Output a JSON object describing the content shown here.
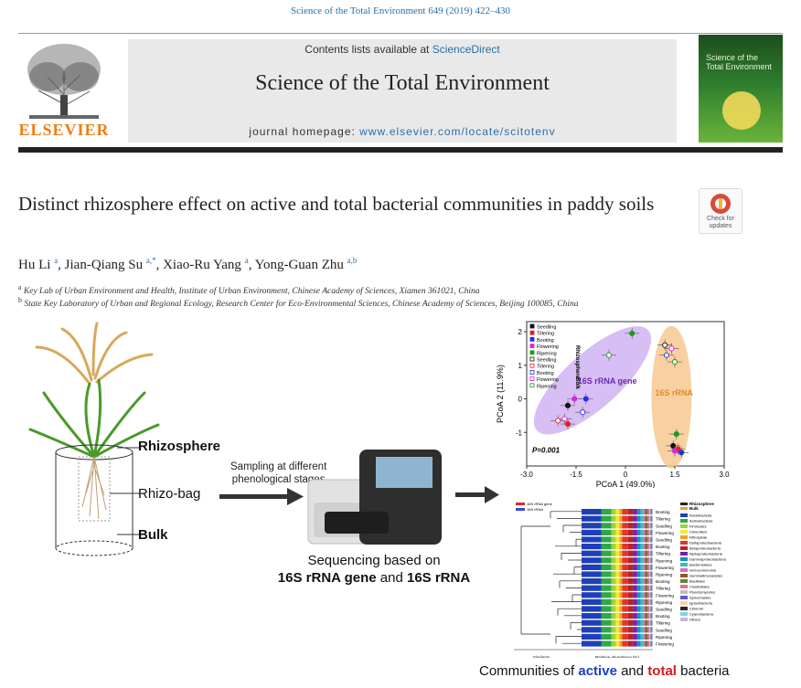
{
  "citation": "Science of the Total Environment 649 (2019) 422–430",
  "header": {
    "contents_prefix": "Contents lists available at ",
    "contents_link": "ScienceDirect",
    "journal_title": "Science of the Total Environment",
    "homepage_prefix": "journal homepage: ",
    "homepage_url": "www.elsevier.com/locate/scitotenv",
    "publisher": "ELSEVIER",
    "cover_title_line1": "Science of the",
    "cover_title_line2": "Total Environment"
  },
  "check_updates": {
    "line1": "Check for",
    "line2": "updates"
  },
  "article": {
    "title": "Distinct rhizosphere effect on active and total bacterial communities in paddy soils",
    "authors": [
      {
        "name": "Hu Li",
        "sup": "a"
      },
      {
        "name": "Jian-Qiang Su",
        "sup": "a,*"
      },
      {
        "name": "Xiao-Ru Yang",
        "sup": "a"
      },
      {
        "name": "Yong-Guan Zhu",
        "sup": "a,b"
      }
    ],
    "affiliations": [
      {
        "sup": "a",
        "text": "Key Lab of Urban Environment and Health, Institute of Urban Environment, Chinese Academy of Sciences, Xiamen 361021, China"
      },
      {
        "sup": "b",
        "text": "State Key Laboratory of Urban and Regional Ecology, Research Center for Eco-Environmental Sciences, Chinese Academy of Sciences, Beijing 100085, China"
      }
    ]
  },
  "graphic": {
    "rhizosphere": "Rhizosphere",
    "rhizo_bag": "Rhizo-bag",
    "bulk": "Bulk",
    "sampling_line1": "Sampling at different",
    "sampling_line2": "phenological stages",
    "sequencing_line1": "Sequencing based on",
    "sequencing_gene": "16S rRNA gene",
    "sequencing_and": " and ",
    "sequencing_rna": "16S rRNA",
    "caption_pre": "Communities of ",
    "caption_active": "active",
    "caption_mid": " and ",
    "caption_total": "total",
    "caption_post": " bacteria"
  },
  "chart_data": {
    "type": "scatter",
    "xlabel": "PCoA 1 (49.0%)",
    "ylabel": "PCoA 2 (11.9%)",
    "xlim": [
      -3.0,
      3.0
    ],
    "ylim": [
      -2,
      2.3
    ],
    "xticks": [
      "-3.0",
      "-1.5",
      "0",
      "1.5",
      "3.0"
    ],
    "yticks": [
      "2",
      "1",
      "0",
      "-1"
    ],
    "annotation": "P=0.001",
    "group_labels": [
      "16S rRNA gene",
      "16S rRNA"
    ],
    "side_labels": [
      "Rhizosphere",
      "Bulk"
    ],
    "legend": [
      "Seedling",
      "Tillering",
      "Booting",
      "Flowering",
      "Ripening",
      "Seedling",
      "Tillering",
      "Booting",
      "Flowering",
      "Ripening"
    ],
    "colors": {
      "gene_ellipse": "#c9a8f0",
      "rna_ellipse": "#f8c48a",
      "seedling": "#111111",
      "tillering": "#e32020",
      "booting": "#2030e0",
      "flowering": "#e020e0",
      "ripening": "#1a9a1a"
    },
    "points_gene": [
      {
        "x": 0.2,
        "y": 1.95,
        "stage": "Ripening",
        "fill": true
      },
      {
        "x": -0.5,
        "y": 1.3,
        "stage": "Ripening",
        "fill": false
      },
      {
        "x": -1.2,
        "y": 0.0,
        "stage": "Booting",
        "fill": true
      },
      {
        "x": -1.55,
        "y": 0.0,
        "stage": "Flowering",
        "fill": true
      },
      {
        "x": -1.75,
        "y": -0.2,
        "stage": "Seedling",
        "fill": true
      },
      {
        "x": -1.3,
        "y": -0.4,
        "stage": "Booting",
        "fill": false
      },
      {
        "x": -1.85,
        "y": -0.6,
        "stage": "Flowering",
        "fill": false
      },
      {
        "x": -1.75,
        "y": -0.75,
        "stage": "Tillering",
        "fill": true
      },
      {
        "x": -2.05,
        "y": -0.65,
        "stage": "Tillering",
        "fill": false
      }
    ],
    "points_rna": [
      {
        "x": 1.2,
        "y": 1.6,
        "stage": "Seedling",
        "fill": false
      },
      {
        "x": 1.4,
        "y": 1.5,
        "stage": "Flowering",
        "fill": false
      },
      {
        "x": 1.25,
        "y": 1.3,
        "stage": "Booting",
        "fill": false
      },
      {
        "x": 1.5,
        "y": 1.1,
        "stage": "Ripening",
        "fill": false
      },
      {
        "x": 1.55,
        "y": -1.05,
        "stage": "Ripening",
        "fill": true
      },
      {
        "x": 1.45,
        "y": -1.4,
        "stage": "Seedling",
        "fill": true
      },
      {
        "x": 1.6,
        "y": -1.5,
        "stage": "Tillering",
        "fill": true
      },
      {
        "x": 1.7,
        "y": -1.6,
        "stage": "Booting",
        "fill": true
      },
      {
        "x": 1.5,
        "y": -1.55,
        "stage": "Flowering",
        "fill": true
      }
    ]
  },
  "dendrogram": {
    "legend_top": [
      "16S rRNA gene",
      "16S rRNA"
    ],
    "xlabel_left": "Similarity",
    "xlabel_right": "Relative abundance (%)",
    "sample_labels": [
      "Booting",
      "Tillering",
      "Seedling",
      "Flowering",
      "Seedling",
      "Booting",
      "Tillering",
      "Ripening",
      "Flowering",
      "Ripening",
      "Booting",
      "Tillering",
      "Flowering",
      "Ripening",
      "Seedling",
      "Booting",
      "Tillering",
      "Seedling",
      "Ripening",
      "Flowering"
    ],
    "legend_groups": [
      "Rhizosphere",
      "Bulk"
    ],
    "taxa": [
      "Acidobacteria",
      "Actinobacteria",
      "Firmicutes",
      "Chloroflexi",
      "Nitrospirae",
      "Deltaproteobacteria",
      "Betaproteobacteria",
      "Alphaproteobacteria",
      "Gammaproteobacteria",
      "Bacteroidetes",
      "Verrucomicrobia",
      "Gemmatimonadetes",
      "Bacillales",
      "Clostridiales",
      "Planctomycetes",
      "Spirochaetes",
      "Ignavibacteria",
      "Chlorobi",
      "Cyanobacteria",
      "Others"
    ],
    "taxa_colors": [
      "#1f3fb8",
      "#2ea84a",
      "#9fd33a",
      "#f2ea2a",
      "#f0a12a",
      "#e3342a",
      "#b4232a",
      "#7b1fa2",
      "#1a8cc9",
      "#33c0c0",
      "#d86cc8",
      "#8f5a2a",
      "#5d8a2a",
      "#e46fa0",
      "#c0c0c0",
      "#5a5ad0",
      "#f7d79a",
      "#2a2a2a",
      "#76d4f0",
      "#c8b4e8"
    ]
  }
}
